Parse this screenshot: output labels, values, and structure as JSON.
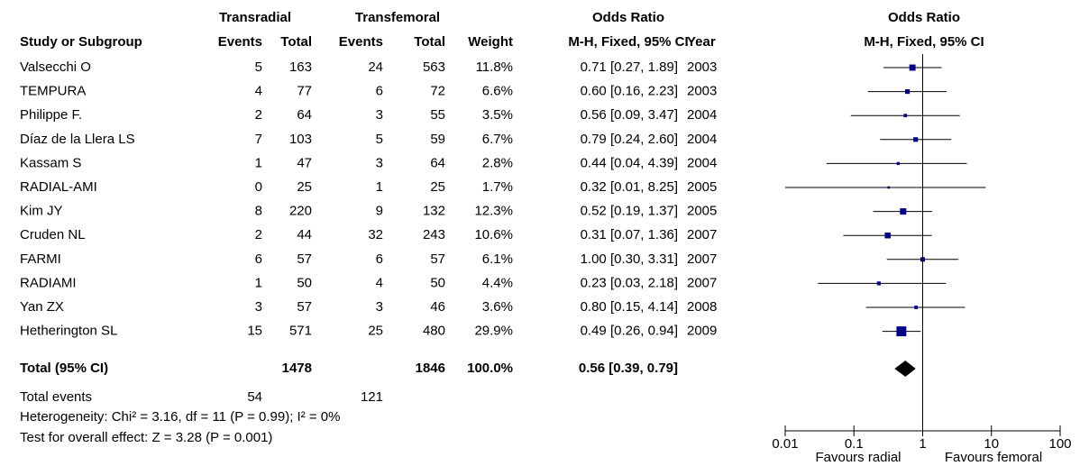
{
  "table": {
    "group_headers": [
      "Transradial",
      "Transfemoral",
      "Odds Ratio",
      "Odds Ratio"
    ],
    "headers": [
      "Study or Subgroup",
      "Events",
      "Total",
      "Events",
      "Total",
      "Weight",
      "M-H, Fixed, 95% CI",
      "Year",
      "M-H, Fixed, 95% CI"
    ],
    "rows": [
      [
        "Valsecchi O",
        5,
        163,
        24,
        563,
        2003
      ],
      [
        "TEMPURA",
        4,
        77,
        6,
        72,
        2003
      ],
      [
        "Philippe F.",
        2,
        64,
        3,
        55,
        2004
      ],
      [
        "Díaz de la Llera LS",
        7,
        103,
        5,
        59,
        2004
      ],
      [
        "Kassam S",
        1,
        47,
        3,
        64,
        2004
      ],
      [
        "RADIAL-AMI",
        0,
        25,
        1,
        25,
        2005
      ],
      [
        "Kim JY",
        8,
        220,
        9,
        132,
        2005
      ],
      [
        "Cruden NL",
        2,
        44,
        32,
        243,
        2007
      ],
      [
        "FARMI",
        6,
        57,
        6,
        57,
        2007
      ],
      [
        "RADIAMI",
        1,
        50,
        4,
        50,
        2007
      ],
      [
        "Yan ZX",
        3,
        57,
        3,
        46,
        2008
      ],
      [
        "Hetherington SL",
        15,
        571,
        25,
        480,
        2009
      ]
    ],
    "total_row": [
      "Total (95% CI)",
      1478,
      1846
    ],
    "events_row": [
      "Total events",
      54,
      121
    ],
    "heterogeneity": "Heterogeneity: Chi² = 3.16, df = 11 (P = 0.99); I² = 0%",
    "overall_effect": "Test for overall effect: Z = 3.28 (P = 0.001)"
  },
  "chart_data": {
    "type": "forest",
    "values": [
      0.71,
      0.6,
      0.56,
      0.79,
      0.44,
      0.32,
      0.52,
      0.31,
      1.0,
      0.23,
      0.8,
      0.49
    ],
    "lower": [
      0.27,
      0.16,
      0.09,
      0.24,
      0.04,
      0.01,
      0.19,
      0.07,
      0.3,
      0.03,
      0.15,
      0.26
    ],
    "upper": [
      1.89,
      2.23,
      3.47,
      2.6,
      4.39,
      8.25,
      1.37,
      1.36,
      3.31,
      2.18,
      4.14,
      0.94
    ],
    "value_labels": [
      "0.71 [0.27, 1.89]",
      "0.60 [0.16, 2.23]",
      "0.56 [0.09, 3.47]",
      "0.79 [0.24, 2.60]",
      "0.44 [0.04, 4.39]",
      "0.32 [0.01, 8.25]",
      "0.52 [0.19, 1.37]",
      "0.31 [0.07, 1.36]",
      "1.00 [0.30, 3.31]",
      "0.23 [0.03, 2.18]",
      "0.80 [0.15, 4.14]",
      "0.49 [0.26, 0.94]"
    ],
    "weights": [
      11.8,
      6.6,
      3.5,
      6.7,
      2.8,
      1.7,
      12.3,
      10.6,
      6.1,
      4.4,
      3.6,
      29.9
    ],
    "weight_labels": [
      "11.8%",
      "6.6%",
      "3.5%",
      "6.7%",
      "2.8%",
      "1.7%",
      "12.3%",
      "10.6%",
      "6.1%",
      "4.4%",
      "3.6%",
      "29.9%"
    ],
    "total": {
      "value": 0.56,
      "lower": 0.39,
      "upper": 0.79,
      "label": "0.56 [0.39, 0.79]",
      "weight": 100.0,
      "weight_label": "100.0%"
    },
    "xlim": [
      0.01,
      100
    ],
    "xticks": [
      0.01,
      0.1,
      1,
      10,
      100
    ],
    "log_x": true,
    "x_labels": [
      "Favours radial",
      "Favours femoral"
    ],
    "color": "#00008b"
  }
}
